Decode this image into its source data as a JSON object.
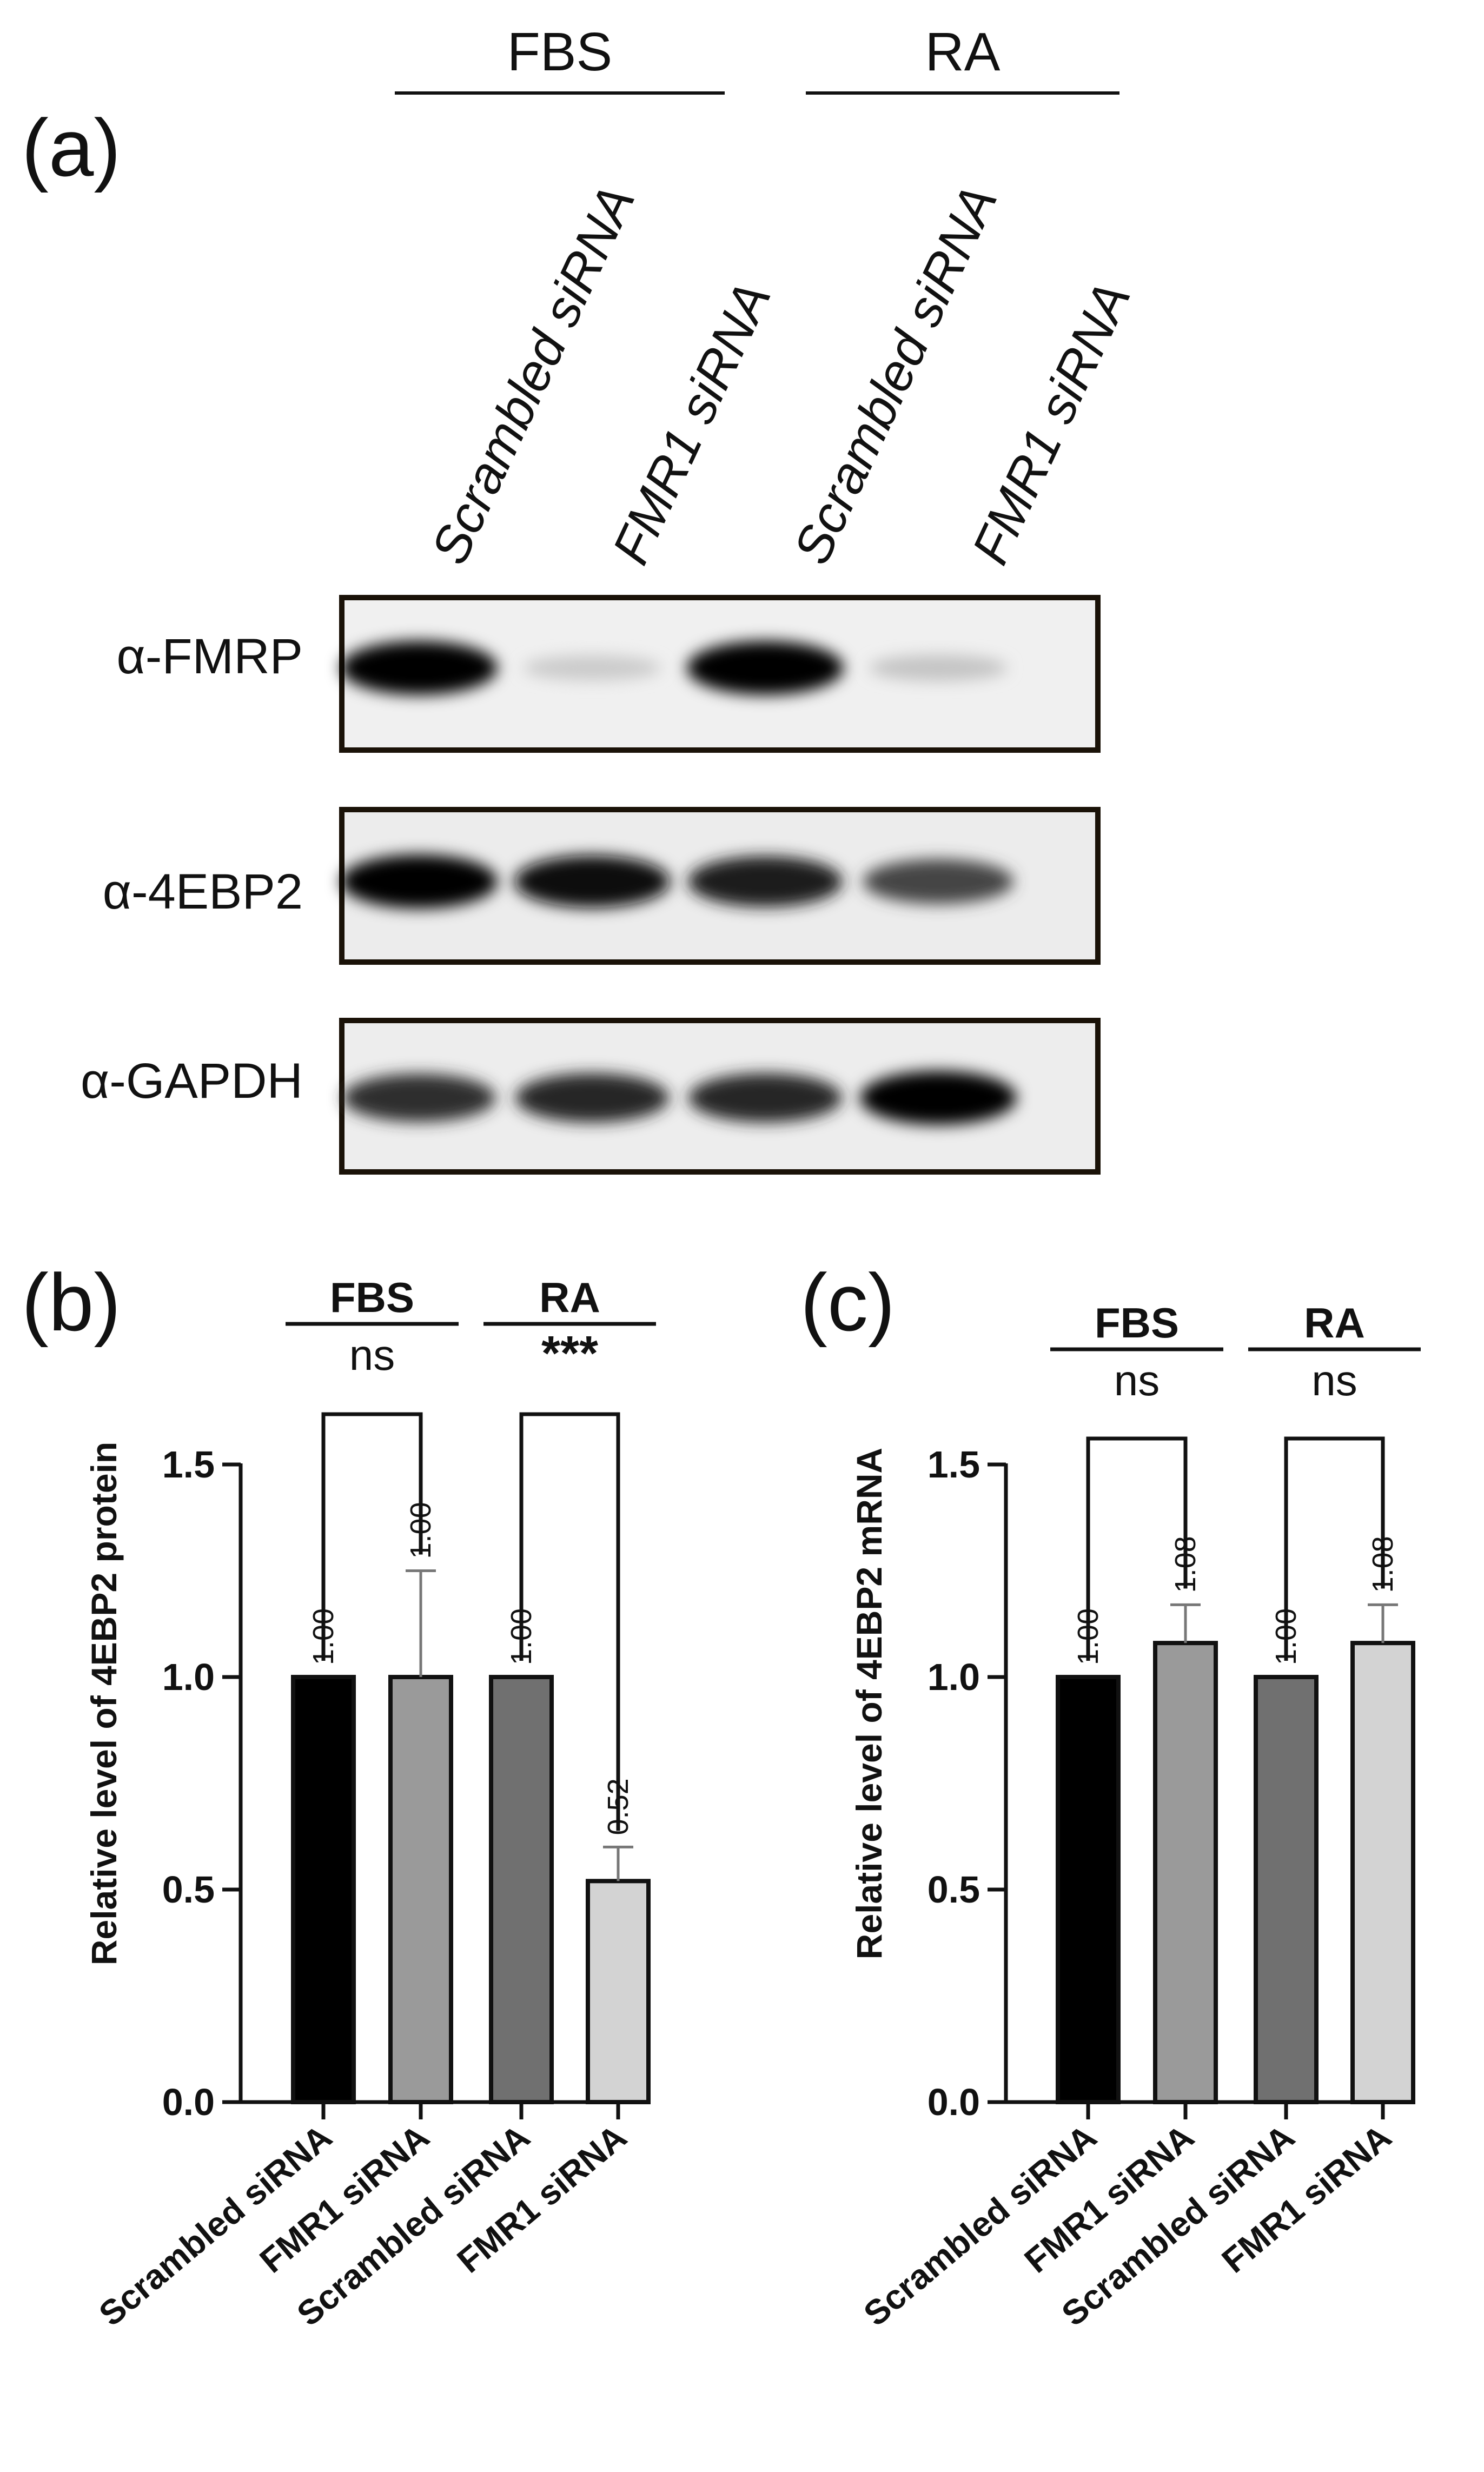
{
  "panel_a": {
    "letter": "(a)",
    "groups": [
      "FBS",
      "RA"
    ],
    "lanes": [
      "Scrambled siRNA",
      "FMR1 siRNA",
      "Scrambled siRNA",
      "FMR1 siRNA"
    ],
    "blots": [
      {
        "label": "α-FMRP",
        "intensities": [
          1.0,
          0.12,
          1.0,
          0.15
        ]
      },
      {
        "label": "α-4EBP2",
        "intensities": [
          1.0,
          0.95,
          0.9,
          0.72
        ]
      },
      {
        "label": "α-GAPDH",
        "intensities": [
          0.82,
          0.85,
          0.85,
          1.0
        ]
      }
    ]
  },
  "colors": [
    "#000000",
    "#9a9a9a",
    "#707070",
    "#d3d3d3"
  ],
  "chart_data": [
    {
      "type": "bar",
      "panel": "(b)",
      "ylabel": "Relative level of 4EBP2 protein",
      "categories": [
        "Scrambled siRNA",
        "FMR1 siRNA",
        "Scrambled siRNA",
        "FMR1 siRNA"
      ],
      "values": [
        1.0,
        1.0,
        1.0,
        0.52
      ],
      "value_labels": [
        "1.00",
        "1.00",
        "1.00",
        "0.52"
      ],
      "errors": [
        0,
        0.25,
        0,
        0.08
      ],
      "ylim": [
        0,
        1.5
      ],
      "yticks": [
        0.0,
        0.5,
        1.0,
        1.5
      ],
      "ytick_labels": [
        "0.0",
        "0.5",
        "1.0",
        "1.5"
      ],
      "groups": [
        "FBS",
        "RA"
      ],
      "significance": [
        "ns",
        "***"
      ]
    },
    {
      "type": "bar",
      "panel": "(c)",
      "ylabel": "Relative level of 4EBP2 mRNA",
      "categories": [
        "Scrambled siRNA",
        "FMR1 siRNA",
        "Scrambled siRNA",
        "FMR1 siRNA"
      ],
      "values": [
        1.0,
        1.08,
        1.0,
        1.08
      ],
      "value_labels": [
        "1.00",
        "1.08",
        "1.00",
        "1.08"
      ],
      "errors": [
        0,
        0.09,
        0,
        0.09
      ],
      "ylim": [
        0,
        1.5
      ],
      "yticks": [
        0.0,
        0.5,
        1.0,
        1.5
      ],
      "ytick_labels": [
        "0.0",
        "0.5",
        "1.0",
        "1.5"
      ],
      "groups": [
        "FBS",
        "RA"
      ],
      "significance": [
        "ns",
        "ns"
      ]
    }
  ]
}
